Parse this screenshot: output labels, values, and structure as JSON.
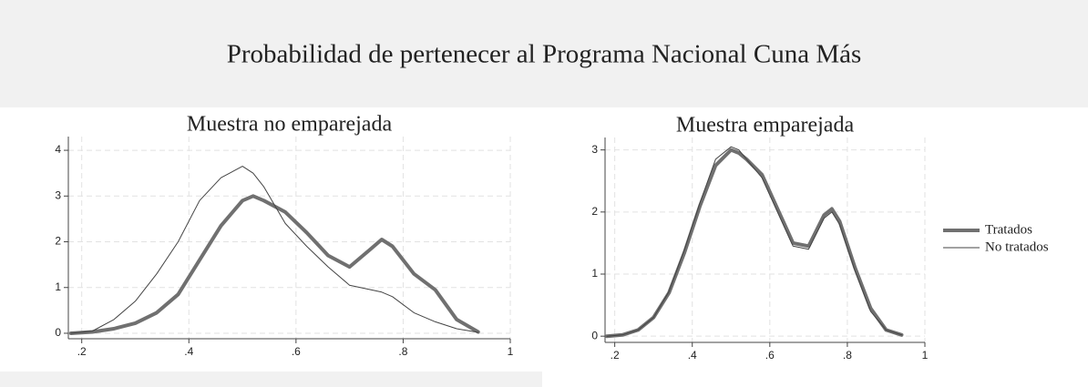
{
  "title": "Probabilidad de pertenecer al Programa Nacional Cuna Más",
  "chart_data": [
    {
      "type": "line",
      "title": "Muestra no emparejada",
      "x": [
        0.18,
        0.22,
        0.26,
        0.3,
        0.34,
        0.38,
        0.42,
        0.46,
        0.5,
        0.52,
        0.54,
        0.58,
        0.62,
        0.66,
        0.7,
        0.74,
        0.76,
        0.78,
        0.82,
        0.86,
        0.9,
        0.94
      ],
      "series": [
        {
          "color": "#707070",
          "line_width": 4,
          "values": [
            0,
            0.03,
            0.1,
            0.22,
            0.45,
            0.85,
            1.6,
            2.35,
            2.9,
            3.0,
            2.9,
            2.65,
            2.2,
            1.7,
            1.45,
            1.85,
            2.05,
            1.9,
            1.3,
            0.95,
            0.3,
            0.03
          ]
        },
        {
          "color": "#444444",
          "line_width": 1,
          "values": [
            0,
            0.05,
            0.3,
            0.7,
            1.3,
            2.0,
            2.9,
            3.4,
            3.65,
            3.5,
            3.2,
            2.4,
            1.9,
            1.45,
            1.05,
            0.95,
            0.9,
            0.8,
            0.45,
            0.25,
            0.1,
            0.02
          ]
        }
      ],
      "xlim": [
        0.175,
        1.0
      ],
      "ylim": [
        -0.12,
        4.3
      ],
      "xticks": [
        {
          "value": 0.2,
          "label": ".2"
        },
        {
          "value": 0.4,
          "label": ".4"
        },
        {
          "value": 0.6,
          "label": ".6"
        },
        {
          "value": 0.8,
          "label": ".8"
        },
        1
      ],
      "yticks": [
        0,
        1,
        2,
        3,
        4
      ],
      "grid": true
    },
    {
      "type": "line",
      "title": "Muestra emparejada",
      "x": [
        0.18,
        0.22,
        0.26,
        0.3,
        0.34,
        0.38,
        0.42,
        0.46,
        0.5,
        0.52,
        0.54,
        0.58,
        0.62,
        0.66,
        0.7,
        0.74,
        0.76,
        0.78,
        0.82,
        0.86,
        0.9,
        0.94
      ],
      "series": [
        {
          "name": "Tratados",
          "color": "#707070",
          "line_width": 4,
          "values": [
            0,
            0.02,
            0.1,
            0.3,
            0.7,
            1.35,
            2.1,
            2.75,
            3.0,
            2.95,
            2.85,
            2.6,
            2.05,
            1.5,
            1.45,
            1.95,
            2.05,
            1.85,
            1.1,
            0.45,
            0.1,
            0.02
          ]
        },
        {
          "name": "No tratados",
          "color": "#444444",
          "line_width": 1,
          "values": [
            0,
            0.02,
            0.1,
            0.3,
            0.72,
            1.4,
            2.15,
            2.85,
            3.05,
            3.0,
            2.85,
            2.55,
            2.0,
            1.45,
            1.4,
            1.9,
            2.0,
            1.8,
            1.05,
            0.4,
            0.1,
            0.02
          ]
        }
      ],
      "xlim": [
        0.175,
        1.0
      ],
      "ylim": [
        -0.1,
        3.2
      ],
      "xticks": [
        {
          "value": 0.2,
          "label": ".2"
        },
        {
          "value": 0.4,
          "label": ".4"
        },
        {
          "value": 0.6,
          "label": ".6"
        },
        {
          "value": 0.8,
          "label": ".8"
        },
        1
      ],
      "yticks": [
        0,
        1,
        2,
        3
      ],
      "grid": true,
      "legend": "right"
    }
  ]
}
